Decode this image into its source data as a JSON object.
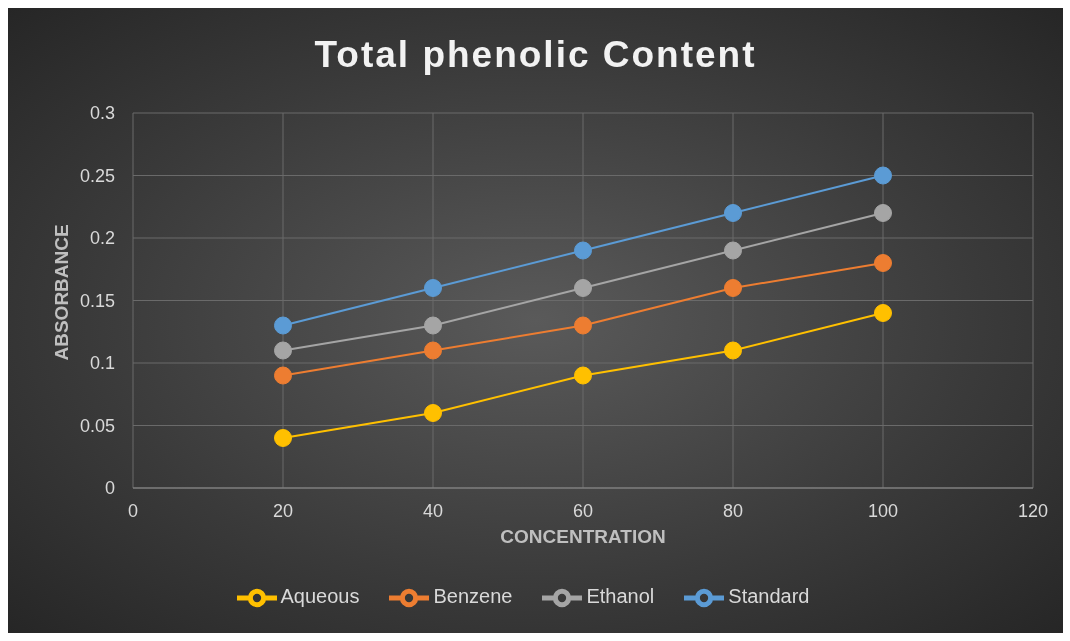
{
  "chart_data": {
    "type": "line",
    "title": "Total phenolic Content",
    "xlabel": "CONCENTRATION",
    "ylabel": "ABSORBANCE",
    "x": [
      20,
      40,
      60,
      80,
      100
    ],
    "series": [
      {
        "name": "Standard",
        "color": "#5b9bd5",
        "values": [
          0.13,
          0.16,
          0.19,
          0.22,
          0.25
        ]
      },
      {
        "name": "Benzene",
        "color": "#ed7d31",
        "values": [
          0.09,
          0.11,
          0.13,
          0.16,
          0.18
        ]
      },
      {
        "name": "Ethanol",
        "color": "#a5a5a5",
        "values": [
          0.11,
          0.13,
          0.16,
          0.19,
          0.22
        ]
      },
      {
        "name": "Aqueous",
        "color": "#ffc000",
        "values": [
          0.04,
          0.06,
          0.09,
          0.11,
          0.14
        ]
      }
    ],
    "xlim": [
      0,
      120
    ],
    "xticks": [
      0,
      20,
      40,
      60,
      80,
      100,
      120
    ],
    "ylim": [
      0,
      0.3
    ],
    "yticks": [
      0,
      0.05,
      0.1,
      0.15,
      0.2,
      0.25,
      0.3
    ],
    "grid": true,
    "legend": "bottom",
    "marker": "circle",
    "line_style": "solid"
  }
}
